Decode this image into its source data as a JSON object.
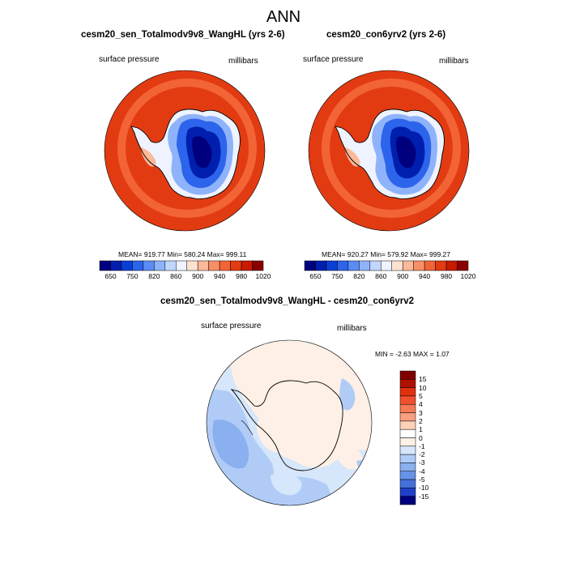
{
  "figure": {
    "title": "ANN"
  },
  "panels": [
    {
      "title": "cesm20_sen_Totalmodv9v8_WangHL (yrs 2-6)",
      "variable": "surface pressure",
      "units": "millibars",
      "stats": "MEAN= 919.77  Min= 580.24  Max= 999.11",
      "colorbar_labels": [
        "650",
        "750",
        "820",
        "860",
        "900",
        "940",
        "980",
        "1020"
      ]
    },
    {
      "title": "cesm20_con6yrv2 (yrs 2-6)",
      "variable": "surface pressure",
      "units": "millibars",
      "stats": "MEAN= 920.27  Min= 579.92  Max= 999.27",
      "colorbar_labels": [
        "650",
        "750",
        "820",
        "860",
        "900",
        "940",
        "980",
        "1020"
      ]
    },
    {
      "title": "cesm20_sen_Totalmodv9v8_WangHL - cesm20_con6yrv2",
      "variable": "surface pressure",
      "units": "millibars",
      "stats": "MIN =  -2.63 MAX =   1.07",
      "colorbar_labels": [
        "15",
        "10",
        "5",
        "4",
        "3",
        "2",
        "1",
        "0",
        "-1",
        "-2",
        "-3",
        "-4",
        "-5",
        "-10",
        "-15"
      ]
    }
  ],
  "colors": {
    "full_field": [
      "#00007f",
      "#001fae",
      "#0a3fd6",
      "#2d64ec",
      "#5a8cf5",
      "#8fb3fa",
      "#c0d6fd",
      "#eef3ff",
      "#fde2d2",
      "#fbb99a",
      "#f88f66",
      "#f26435",
      "#e23b12",
      "#c91a00",
      "#8a0000"
    ],
    "difference": [
      "#800000",
      "#b01000",
      "#e03010",
      "#f05030",
      "#f57a55",
      "#f9a080",
      "#fdd0b8",
      "#fef0e6",
      "#d6e6fb",
      "#b0ccf6",
      "#8ab0f0",
      "#6692e8",
      "#4470dc",
      "#2040c8",
      "#00007f"
    ]
  }
}
